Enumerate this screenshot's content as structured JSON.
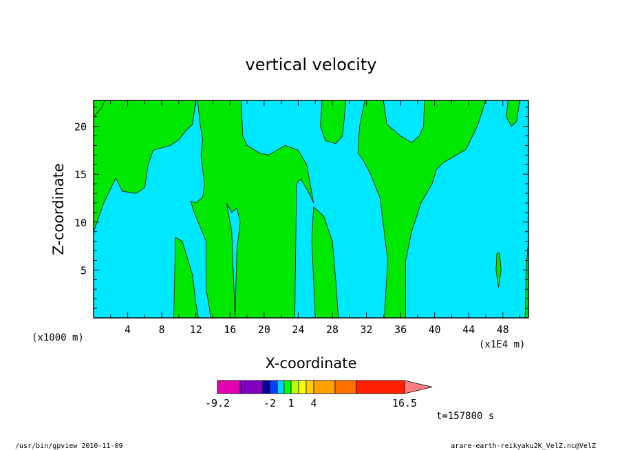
{
  "chart_data": {
    "type": "contour",
    "title": "vertical velocity",
    "xlabel": "X-coordinate",
    "ylabel": "Z-coordinate",
    "x_unit_left": "(x1000 m)",
    "x_unit_right": "(x1E4 m)",
    "x_ticks": [
      "4",
      "8",
      "12",
      "16",
      "20",
      "24",
      "28",
      "32",
      "36",
      "40",
      "44",
      "48"
    ],
    "y_ticks": [
      "5",
      "10",
      "15",
      "20"
    ],
    "xlim": [
      0,
      51
    ],
    "ylim": [
      0,
      22.7
    ],
    "levels_labels": [
      "-9.2",
      "-2",
      "1",
      "4",
      "16.5"
    ],
    "colorbar_colors": [
      "#e000b0",
      "#8000c0",
      "#0000a0",
      "#0040ff",
      "#00d0ff",
      "#00ff00",
      "#c0ff00",
      "#ffff00",
      "#ffd000",
      "#ffa000",
      "#ff7000",
      "#ff2000",
      "#ff8080",
      "#ffb0b0"
    ],
    "field_colors": {
      "low": "#00e8ff",
      "high": "#00e800"
    },
    "regions": [
      {
        "level": "high",
        "poly": [
          [
            0,
            9
          ],
          [
            1.2,
            12
          ],
          [
            2,
            13.5
          ],
          [
            2.6,
            14.6
          ],
          [
            3.4,
            13.2
          ],
          [
            5,
            13
          ],
          [
            6,
            13.6
          ],
          [
            6.4,
            16
          ],
          [
            7,
            17.5
          ],
          [
            9,
            18
          ],
          [
            10,
            18.6
          ],
          [
            10.8,
            19.5
          ],
          [
            11.6,
            20.2
          ],
          [
            12,
            22.7
          ],
          [
            0,
            22.7
          ],
          [
            0,
            21
          ],
          [
            1,
            22
          ],
          [
            1.3,
            22.7
          ],
          [
            0,
            22.7
          ]
        ]
      },
      {
        "level": "high",
        "poly": [
          [
            9.4,
            0
          ],
          [
            9.6,
            8.4
          ],
          [
            10.4,
            8
          ],
          [
            11.6,
            4.5
          ],
          [
            12,
            1.5
          ],
          [
            12.3,
            0
          ]
        ]
      },
      {
        "level": "high",
        "poly": [
          [
            15.6,
            12
          ],
          [
            16.2,
            11
          ],
          [
            16.8,
            11.5
          ],
          [
            17.2,
            10
          ],
          [
            16.8,
            7
          ],
          [
            16.6,
            0
          ],
          [
            23.6,
            0
          ],
          [
            23.8,
            14
          ],
          [
            24.3,
            14.5
          ],
          [
            25.3,
            13
          ],
          [
            25.8,
            12
          ],
          [
            25,
            16
          ],
          [
            24,
            17.5
          ],
          [
            22.5,
            18
          ],
          [
            20.5,
            17
          ],
          [
            19.5,
            17.2
          ],
          [
            18,
            18
          ],
          [
            17.5,
            19
          ],
          [
            17.3,
            22.7
          ],
          [
            12.2,
            22.7
          ],
          [
            12.5,
            20.2
          ],
          [
            12.8,
            18.6
          ],
          [
            12.6,
            17
          ],
          [
            12.8,
            15.5
          ],
          [
            13,
            14
          ],
          [
            12.8,
            12.6
          ],
          [
            12,
            12
          ],
          [
            11.4,
            12.2
          ],
          [
            11.8,
            11
          ],
          [
            13.2,
            8
          ],
          [
            13.2,
            3
          ],
          [
            13.6,
            1
          ],
          [
            13.7,
            0
          ],
          [
            16.6,
            0
          ],
          [
            16.2,
            9
          ],
          [
            15.6,
            12
          ]
        ]
      },
      {
        "level": "high",
        "poly": [
          [
            26,
            0
          ],
          [
            25.6,
            8
          ],
          [
            25.8,
            11.6
          ],
          [
            27,
            10.6
          ],
          [
            28,
            8
          ],
          [
            28.4,
            4
          ],
          [
            28.7,
            0
          ]
        ]
      },
      {
        "level": "high",
        "poly": [
          [
            26.8,
            22.7
          ],
          [
            26.6,
            20
          ],
          [
            27.2,
            18.5
          ],
          [
            28.4,
            18.2
          ],
          [
            29.2,
            19
          ],
          [
            29.6,
            22.7
          ]
        ]
      },
      {
        "level": "high",
        "poly": [
          [
            34.1,
            0
          ],
          [
            34.5,
            6
          ],
          [
            33.6,
            12.5
          ],
          [
            32.5,
            15
          ],
          [
            31.6,
            16.5
          ],
          [
            31,
            17.2
          ],
          [
            31.2,
            20
          ],
          [
            31.8,
            22.7
          ],
          [
            34,
            22.7
          ],
          [
            34.4,
            20.2
          ],
          [
            36,
            19
          ],
          [
            37.3,
            18.3
          ],
          [
            38.2,
            19
          ],
          [
            38.7,
            20
          ],
          [
            38.8,
            22.7
          ],
          [
            48.6,
            22.7
          ],
          [
            48.4,
            21
          ],
          [
            49,
            20
          ],
          [
            49.6,
            20.5
          ],
          [
            50,
            22.7
          ],
          [
            46,
            22.7
          ],
          [
            45,
            20
          ],
          [
            43.7,
            17.6
          ],
          [
            41,
            16.2
          ],
          [
            40.2,
            15.5
          ],
          [
            39.7,
            14
          ],
          [
            38.4,
            12
          ],
          [
            37.3,
            9
          ],
          [
            36.6,
            6
          ],
          [
            36.6,
            0
          ]
        ]
      },
      {
        "level": "high",
        "poly": [
          [
            47.2,
            5
          ],
          [
            47.5,
            3.2
          ],
          [
            47.8,
            5
          ],
          [
            47.6,
            6.8
          ],
          [
            47.3,
            6.7
          ]
        ]
      },
      {
        "level": "high",
        "poly": [
          [
            50.6,
            0
          ],
          [
            50.8,
            6
          ],
          [
            51,
            8
          ],
          [
            51,
            0
          ]
        ]
      }
    ]
  },
  "footer": {
    "left": "/usr/bin/gpview  2010-11-09",
    "right": "arare-earth-reikyaku2K_VelZ.nc@VelZ",
    "time": "t=157800 s"
  }
}
